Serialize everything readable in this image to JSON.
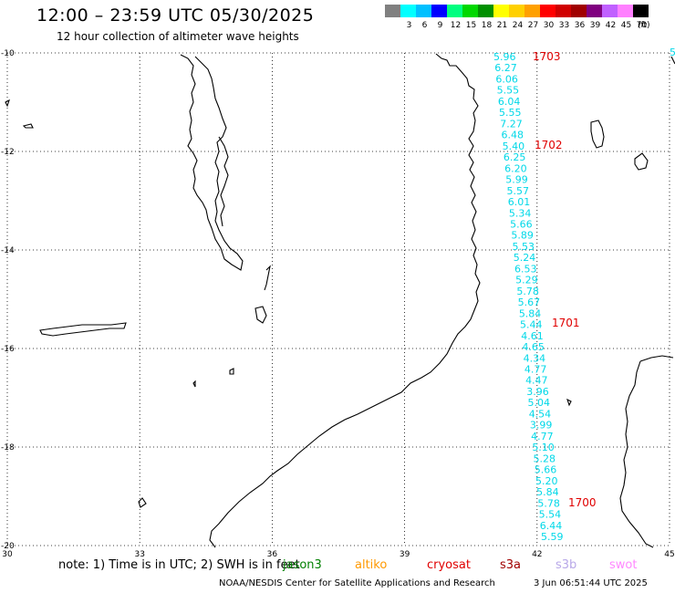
{
  "header": {
    "title": "12:00 – 23:59 UTC 05/30/2025",
    "subtitle": "12 hour collection of altimeter wave heights"
  },
  "color_scale": {
    "unit": "(ft)",
    "bins": [
      {
        "label": "",
        "color": "#808080"
      },
      {
        "label": "3",
        "color": "#00ffff"
      },
      {
        "label": "6",
        "color": "#00c0ff"
      },
      {
        "label": "9",
        "color": "#0000ff"
      },
      {
        "label": "12",
        "color": "#00ff80"
      },
      {
        "label": "15",
        "color": "#00d800"
      },
      {
        "label": "18",
        "color": "#009000"
      },
      {
        "label": "21",
        "color": "#ffff00"
      },
      {
        "label": "24",
        "color": "#ffd000"
      },
      {
        "label": "27",
        "color": "#ffa000"
      },
      {
        "label": "30",
        "color": "#ff0000"
      },
      {
        "label": "33",
        "color": "#d00000"
      },
      {
        "label": "36",
        "color": "#a00000"
      },
      {
        "label": "39",
        "color": "#800080"
      },
      {
        "label": "42",
        "color": "#c060ff"
      },
      {
        "label": "45",
        "color": "#ff80ff"
      },
      {
        "label": "70",
        "color": "#000000"
      }
    ]
  },
  "map": {
    "lon_range": [
      30,
      45
    ],
    "lat_range": [
      -20,
      -10
    ],
    "lat_ticks": [
      "-10",
      "-12",
      "-14",
      "-16",
      "-18",
      "-20"
    ],
    "lon_ticks": [
      "30",
      "33",
      "36",
      "39",
      "42",
      "45"
    ],
    "grid": "dotted",
    "swh_color": "#00d8e8",
    "swh_values": [
      "5.96",
      "6.27",
      "6.06",
      "5.55",
      "6.04",
      "5.55",
      "7.27",
      "6.48",
      "5.40",
      "6.25",
      "6.20",
      "5.99",
      "5.57",
      "6.01",
      "5.34",
      "5.66",
      "5.89",
      "5.53",
      "5.24",
      "6.53",
      "5.29",
      "5.78",
      "5.67",
      "5.84",
      "5.44",
      "4.61",
      "4.65",
      "4.34",
      "4.77",
      "4.47",
      "3.96",
      "5.04",
      "4.54",
      "3.99",
      "4.77",
      "5.10",
      "5.28",
      "5.66",
      "5.20",
      "5.84",
      "5.78",
      "5.54",
      "6.44",
      "5.59"
    ],
    "edge_value": "5",
    "cycle_labels": [
      "1703",
      "1702",
      "1701",
      "1700"
    ],
    "cycle_color": "#e00000"
  },
  "footer": {
    "note": "note: 1) Time is in UTC; 2) SWH is in feet",
    "satellites": [
      {
        "name": "jason3",
        "color": "#008000"
      },
      {
        "name": "altiko",
        "color": "#ff9900"
      },
      {
        "name": "cryosat",
        "color": "#e00000"
      },
      {
        "name": "s3a",
        "color": "#a00000"
      },
      {
        "name": "s3b",
        "color": "#b8a8e8"
      },
      {
        "name": "swot",
        "color": "#ff88ff"
      }
    ],
    "credit": "NOAA/NESDIS Center for Satellite Applications and Research",
    "timestamp": "3 Jun 06:51:44 UTC 2025"
  }
}
